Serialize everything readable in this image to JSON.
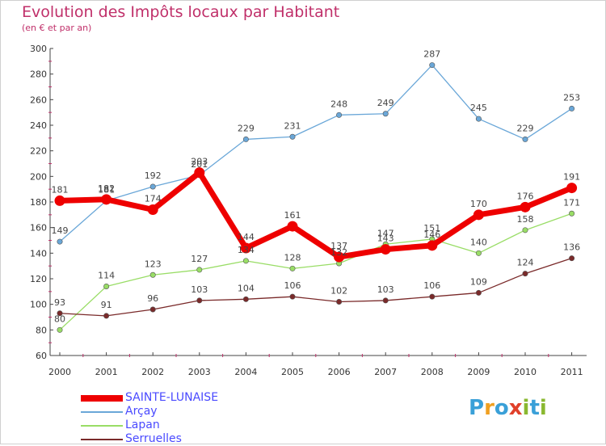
{
  "header": {
    "title": "Evolution des Impôts locaux par Habitant",
    "subtitle": "(en € et par an)"
  },
  "logo": {
    "letters": [
      "P",
      "r",
      "o",
      "x",
      "i",
      "t",
      "i"
    ],
    "colors": [
      "#3aa0d8",
      "#f0a020",
      "#3aa0d8",
      "#e0402a",
      "#8ab830",
      "#3aa0d8",
      "#8ab830"
    ]
  },
  "chart_data": {
    "type": "line",
    "title": "Evolution des Impôts locaux par Habitant",
    "subtitle": "(en € et par an)",
    "x": [
      "2000",
      "2001",
      "2002",
      "2003",
      "2004",
      "2005",
      "2006",
      "2007",
      "2008",
      "2009",
      "2010",
      "2011"
    ],
    "ylim": [
      60,
      300
    ],
    "yticks": [
      60,
      80,
      100,
      120,
      140,
      160,
      180,
      200,
      220,
      240,
      260,
      280,
      300
    ],
    "grid": false,
    "legend_position": "bottom-left",
    "series": [
      {
        "name": "SAINTE-LUNAISE",
        "values": [
          181,
          182,
          174,
          203,
          144,
          161,
          137,
          143,
          146,
          170,
          176,
          191
        ],
        "color": "#ee0000",
        "style": "thick"
      },
      {
        "name": "Arçay",
        "values": [
          149,
          181,
          192,
          201,
          229,
          231,
          248,
          249,
          287,
          245,
          229,
          253
        ],
        "color": "#6aa7d8",
        "style": "thin"
      },
      {
        "name": "Lapan",
        "values": [
          80,
          114,
          123,
          127,
          134,
          128,
          132,
          147,
          151,
          140,
          158,
          171
        ],
        "color": "#99dd66",
        "style": "thin"
      },
      {
        "name": "Serruelles",
        "values": [
          93,
          91,
          96,
          103,
          104,
          106,
          102,
          103,
          106,
          109,
          124,
          136
        ],
        "color": "#7a2a2a",
        "style": "thin"
      }
    ]
  }
}
